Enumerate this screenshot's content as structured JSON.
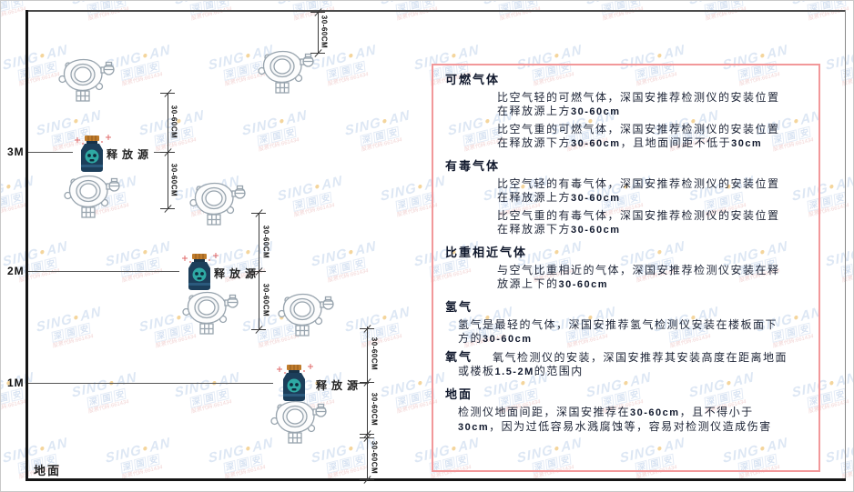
{
  "diagram": {
    "ground_label": "地面",
    "release_source_label": "释放源",
    "dimension_label": "30-60CM",
    "levels": [
      {
        "label": "3M"
      },
      {
        "label": "2M"
      },
      {
        "label": "1M"
      }
    ],
    "icon_names": {
      "detector": "gas-detector-icon",
      "source": "release-source-icon"
    }
  },
  "panel": {
    "bold_tokens": [
      "30-60cm",
      "30cm",
      "1.5-2M"
    ],
    "sections": [
      {
        "heading": "可燃气体",
        "paragraphs": [
          {
            "text": "比空气轻的可燃气体，深国安推荐检测仪的安装位置在释放源上方30-60cm",
            "indent": "lg"
          },
          {
            "text": "比空气重的可燃气体，深国安推荐检测仪的安装位置在释放源下方30-60cm，且地面间距不低于30cm",
            "indent": "lg"
          }
        ]
      },
      {
        "heading": "有毒气体",
        "paragraphs": [
          {
            "text": "比空气轻的有毒气体，深国安推荐检测仪的安装位置在释放源上方30-60cm",
            "indent": "lg"
          },
          {
            "text": "比空气重的有毒气体，深国安推荐检测仪的安装位置在释放源下方30-60cm",
            "indent": "lg"
          }
        ]
      },
      {
        "heading": "比重相近气体",
        "paragraphs": [
          {
            "text": "与空气比重相近的气体，深国安推荐检测仪安装在释放源上下的30-60cm",
            "indent": "lg"
          }
        ]
      },
      {
        "heading": "氢气",
        "paragraphs": [
          {
            "text": "氢气是最轻的气体，深国安推荐氢气检测仪安装在楼板面下方的30-60cm",
            "indent": "sm"
          }
        ]
      },
      {
        "heading": "氧气",
        "inline": true,
        "paragraphs": [
          {
            "text": "氧气检测仪的安装，深国安推荐其安装高度在距离地面或楼板1.5-2M的范围内",
            "indent": "sm"
          }
        ]
      },
      {
        "heading": "地面",
        "paragraphs": [
          {
            "text": "检测仪地面间距，深国安推荐在30-60cm，且不得小于30cm，因为过低容易水溅腐蚀等，容易对检测仪造成伤害",
            "indent": "sm"
          }
        ]
      }
    ]
  },
  "watermark": {
    "brand_left": "SING",
    "brand_right": "AN",
    "dot": "●",
    "cn": "深国安",
    "sub": "股票代码:661434"
  },
  "colors": {
    "panel_border": "#f2989a",
    "source_body": "#1c3e5a",
    "source_cap": "#c07c2c",
    "source_face": "#2fa9a4",
    "watermark_blue": "#7aa0d4",
    "watermark_dot": "#e8a832",
    "watermark_red": "#d67676",
    "line_dark": "#151515"
  }
}
